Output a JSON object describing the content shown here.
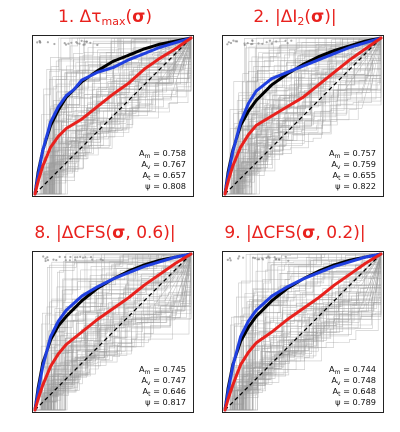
{
  "chart_data": [
    {
      "type": "line",
      "title": {
        "prefix": "1. Δτ",
        "sub": "max",
        "open": "(",
        "sigma": "σ",
        "close": ")"
      },
      "xlim": [
        0,
        1
      ],
      "ylim": [
        0,
        1
      ],
      "series": [
        {
          "color": "#000000",
          "x": [
            0,
            0.02,
            0.05,
            0.1,
            0.15,
            0.2,
            0.3,
            0.4,
            0.5,
            0.6,
            0.7,
            0.8,
            0.9,
            1
          ],
          "y": [
            0,
            0.14,
            0.28,
            0.44,
            0.54,
            0.62,
            0.72,
            0.79,
            0.85,
            0.89,
            0.93,
            0.96,
            0.98,
            1
          ]
        },
        {
          "color": "#1f3fe0",
          "x": [
            0,
            0.02,
            0.05,
            0.1,
            0.15,
            0.2,
            0.25,
            0.3,
            0.4,
            0.5,
            0.6,
            0.7,
            0.8,
            0.9,
            1
          ],
          "y": [
            0,
            0.12,
            0.28,
            0.46,
            0.56,
            0.63,
            0.67,
            0.73,
            0.78,
            0.81,
            0.86,
            0.9,
            0.94,
            0.97,
            1
          ]
        },
        {
          "color": "#e8211d",
          "x": [
            0,
            0.02,
            0.05,
            0.1,
            0.15,
            0.2,
            0.3,
            0.4,
            0.5,
            0.6,
            0.7,
            0.8,
            0.9,
            1
          ],
          "y": [
            0,
            0.08,
            0.18,
            0.3,
            0.37,
            0.42,
            0.48,
            0.56,
            0.64,
            0.71,
            0.8,
            0.87,
            0.93,
            1
          ]
        }
      ],
      "stats": [
        {
          "label": "A",
          "sub": "m",
          "value": "= 0.758"
        },
        {
          "label": "A",
          "sub": "v",
          "value": "= 0.767"
        },
        {
          "label": "A",
          "sub": "t",
          "value": "= 0.657"
        },
        {
          "label": "ψ",
          "sub": "",
          "value": "= 0.808"
        }
      ]
    },
    {
      "type": "line",
      "title": {
        "prefix": "2. |ΔI",
        "sub": "2",
        "open": "(",
        "sigma": "σ",
        "close": ")|"
      },
      "xlim": [
        0,
        1
      ],
      "ylim": [
        0,
        1
      ],
      "series": [
        {
          "color": "#000000",
          "x": [
            0,
            0.02,
            0.05,
            0.1,
            0.15,
            0.2,
            0.3,
            0.4,
            0.5,
            0.6,
            0.7,
            0.8,
            0.9,
            1
          ],
          "y": [
            0,
            0.14,
            0.28,
            0.44,
            0.53,
            0.6,
            0.7,
            0.77,
            0.83,
            0.88,
            0.92,
            0.95,
            0.98,
            1
          ]
        },
        {
          "color": "#1f3fe0",
          "x": [
            0,
            0.02,
            0.05,
            0.1,
            0.15,
            0.2,
            0.3,
            0.4,
            0.5,
            0.6,
            0.7,
            0.8,
            0.9,
            1
          ],
          "y": [
            0,
            0.12,
            0.27,
            0.46,
            0.58,
            0.66,
            0.74,
            0.78,
            0.82,
            0.86,
            0.9,
            0.94,
            0.97,
            1
          ]
        },
        {
          "color": "#e8211d",
          "x": [
            0,
            0.02,
            0.05,
            0.1,
            0.15,
            0.2,
            0.3,
            0.4,
            0.5,
            0.6,
            0.7,
            0.8,
            0.9,
            1
          ],
          "y": [
            0,
            0.08,
            0.18,
            0.3,
            0.38,
            0.44,
            0.5,
            0.56,
            0.62,
            0.7,
            0.78,
            0.86,
            0.93,
            1
          ]
        }
      ],
      "stats": [
        {
          "label": "A",
          "sub": "m",
          "value": "= 0.757"
        },
        {
          "label": "A",
          "sub": "v",
          "value": "= 0.759"
        },
        {
          "label": "A",
          "sub": "t",
          "value": "= 0.655"
        },
        {
          "label": "ψ",
          "sub": "",
          "value": "= 0.822"
        }
      ]
    },
    {
      "type": "line",
      "title": {
        "prefix": "8. |ΔCFS(",
        "sub": "",
        "open": "",
        "sigma": "σ",
        "close": ", 0.6)|"
      },
      "xlim": [
        0,
        1
      ],
      "ylim": [
        0,
        1
      ],
      "series": [
        {
          "color": "#000000",
          "x": [
            0,
            0.02,
            0.05,
            0.1,
            0.15,
            0.2,
            0.3,
            0.4,
            0.5,
            0.6,
            0.7,
            0.8,
            0.9,
            1
          ],
          "y": [
            0,
            0.14,
            0.3,
            0.45,
            0.54,
            0.6,
            0.7,
            0.78,
            0.84,
            0.89,
            0.93,
            0.96,
            0.98,
            1
          ]
        },
        {
          "color": "#1f3fe0",
          "x": [
            0,
            0.02,
            0.05,
            0.1,
            0.15,
            0.2,
            0.3,
            0.4,
            0.5,
            0.6,
            0.7,
            0.8,
            0.9,
            1
          ],
          "y": [
            0,
            0.12,
            0.28,
            0.47,
            0.57,
            0.64,
            0.73,
            0.79,
            0.84,
            0.88,
            0.92,
            0.95,
            0.98,
            1
          ]
        },
        {
          "color": "#e8211d",
          "x": [
            0,
            0.02,
            0.05,
            0.1,
            0.15,
            0.2,
            0.3,
            0.4,
            0.5,
            0.6,
            0.7,
            0.8,
            0.9,
            1
          ],
          "y": [
            0,
            0.07,
            0.16,
            0.28,
            0.36,
            0.42,
            0.5,
            0.58,
            0.65,
            0.72,
            0.8,
            0.87,
            0.94,
            1
          ]
        }
      ],
      "stats": [
        {
          "label": "A",
          "sub": "m",
          "value": "= 0.745"
        },
        {
          "label": "A",
          "sub": "v",
          "value": "= 0.747"
        },
        {
          "label": "A",
          "sub": "t",
          "value": "= 0.646"
        },
        {
          "label": "ψ",
          "sub": "",
          "value": "= 0.817"
        }
      ]
    },
    {
      "type": "line",
      "title": {
        "prefix": "9. |ΔCFS(",
        "sub": "",
        "open": "",
        "sigma": "σ",
        "close": ", 0.2)|"
      },
      "xlim": [
        0,
        1
      ],
      "ylim": [
        0,
        1
      ],
      "series": [
        {
          "color": "#000000",
          "x": [
            0,
            0.02,
            0.05,
            0.1,
            0.15,
            0.2,
            0.3,
            0.4,
            0.5,
            0.6,
            0.7,
            0.8,
            0.9,
            1
          ],
          "y": [
            0,
            0.14,
            0.29,
            0.44,
            0.53,
            0.6,
            0.7,
            0.78,
            0.84,
            0.89,
            0.93,
            0.96,
            0.98,
            1
          ]
        },
        {
          "color": "#1f3fe0",
          "x": [
            0,
            0.02,
            0.05,
            0.1,
            0.15,
            0.2,
            0.3,
            0.4,
            0.5,
            0.6,
            0.7,
            0.8,
            0.9,
            1
          ],
          "y": [
            0,
            0.12,
            0.28,
            0.47,
            0.57,
            0.64,
            0.73,
            0.79,
            0.84,
            0.88,
            0.92,
            0.95,
            0.98,
            1
          ]
        },
        {
          "color": "#e8211d",
          "x": [
            0,
            0.02,
            0.05,
            0.1,
            0.15,
            0.2,
            0.3,
            0.4,
            0.5,
            0.6,
            0.7,
            0.8,
            0.9,
            1
          ],
          "y": [
            0,
            0.07,
            0.16,
            0.29,
            0.37,
            0.43,
            0.5,
            0.58,
            0.65,
            0.72,
            0.8,
            0.87,
            0.94,
            1
          ]
        }
      ],
      "stats": [
        {
          "label": "A",
          "sub": "m",
          "value": "= 0.744"
        },
        {
          "label": "A",
          "sub": "v",
          "value": "= 0.748"
        },
        {
          "label": "A",
          "sub": "t",
          "value": "= 0.648"
        },
        {
          "label": "ψ",
          "sub": "",
          "value": "= 0.789"
        }
      ]
    }
  ]
}
